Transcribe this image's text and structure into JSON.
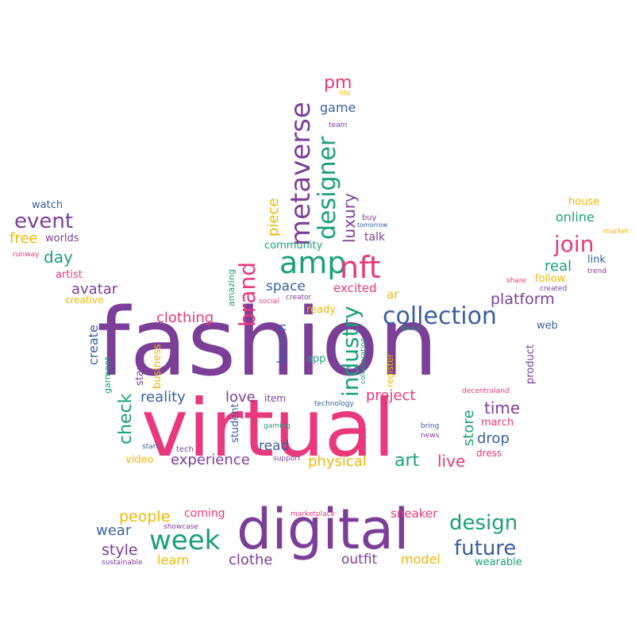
{
  "colors": {
    "purple": "#7b3f98",
    "pink": "#e8397d",
    "green": "#1aa079",
    "blue": "#3a5fa0",
    "yellow": "#f2b705"
  },
  "words": {
    "fashion": "fashion",
    "virtual": "virtual",
    "digital": "digital",
    "metaverse": "metaverse",
    "designer": "designer",
    "amp": "amp",
    "nft": "nft",
    "collection": "collection",
    "week": "week",
    "industry": "industry",
    "brand": "brand",
    "join": "join",
    "event": "event",
    "design": "design",
    "future": "future",
    "platform": "platform",
    "experience": "experience",
    "clothing": "clothing",
    "art": "art",
    "live": "live",
    "time": "time",
    "project": "project",
    "reality": "reality",
    "love": "love",
    "check": "check",
    "physical": "physical",
    "people": "people",
    "style": "style",
    "outfit": "outfit",
    "clothe": "clothe",
    "wear": "wear",
    "learn": "learn",
    "model": "model",
    "wearable": "wearable",
    "sneaker": "sneaker",
    "coming": "coming",
    "showcase": "showcase",
    "marketplace": "marketplace",
    "sustainable": "sustainable",
    "space": "space",
    "excited": "excited",
    "community": "community",
    "piece": "piece",
    "luxury": "luxury",
    "talk": "talk",
    "buy": "buy",
    "pm": "pm",
    "game": "game",
    "life": "life",
    "team": "team",
    "ar": "ar",
    "avatar": "avatar",
    "day": "day",
    "free": "free",
    "worlds": "worlds",
    "watch": "watch",
    "runway": "runway",
    "artist": "artist",
    "creative": "creative",
    "create": "create",
    "garment": "garment",
    "business": "business",
    "stay": "stay",
    "amazing": "amazing",
    "social": "social",
    "creator": "creator",
    "ready": "ready",
    "launch": "launch",
    "app": "app",
    "student": "student",
    "gaming": "gaming",
    "item": "item",
    "technology": "technology",
    "read": "read",
    "support": "support",
    "tech": "tech",
    "start": "start",
    "video": "video",
    "bring": "bring",
    "news": "news",
    "store": "store",
    "drop": "drop",
    "march": "march",
    "dress": "dress",
    "decentraland": "decentraland",
    "product": "product",
    "web": "web",
    "music": "music",
    "collaboration": "collaboration",
    "register": "register",
    "online": "online",
    "house": "house",
    "market": "market",
    "real": "real",
    "link": "link",
    "follow": "follow",
    "share": "share",
    "created": "created",
    "trend": "trend",
    "tomorrow": "tomorrow"
  }
}
